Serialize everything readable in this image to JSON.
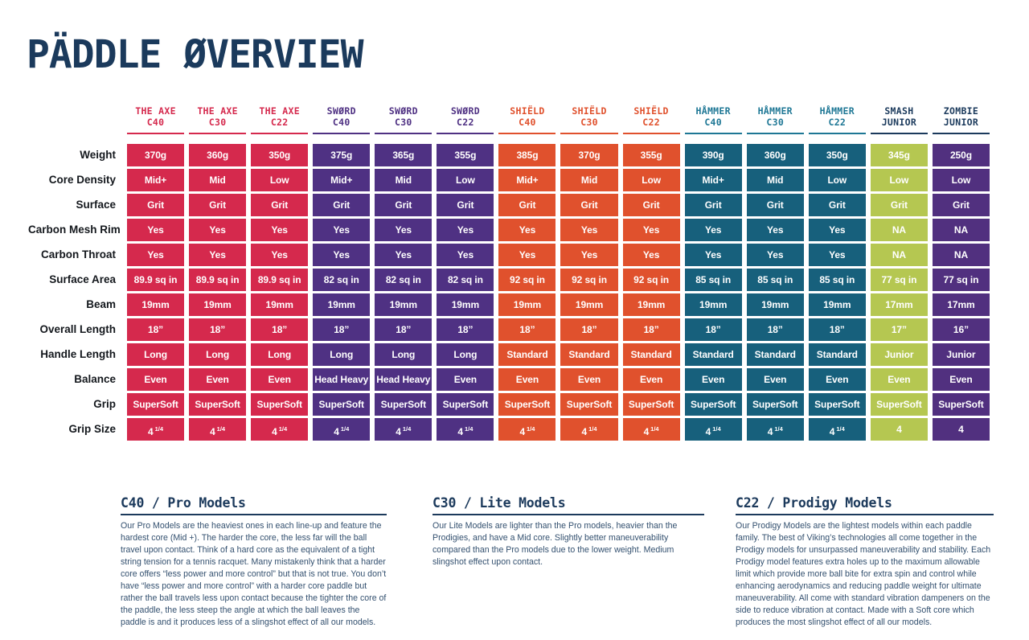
{
  "title": "PÄDDLE ØVERVIEW",
  "colors": {
    "navy": "#1B3A5C",
    "body_text": "#33506F",
    "row_label": "#14181D",
    "axe_red": "#D5294D",
    "sword_purple": "#4F3183",
    "shield_orange": "#E0512D",
    "hammer_teal": "#17607C",
    "hammer_teal_header": "#1E7795",
    "smash_lime": "#B5C751",
    "zombie_purple": "#51307F"
  },
  "families": {
    "axe": {
      "header": "#D5294D",
      "cell": "#D5294D"
    },
    "sword": {
      "header": "#4F3183",
      "cell": "#4F3183"
    },
    "shield": {
      "header": "#E0512D",
      "cell": "#E0512D"
    },
    "hammer": {
      "header": "#1E7795",
      "cell": "#17607C"
    },
    "smash": {
      "header": "#1B3A5C",
      "cell": "#B5C751"
    },
    "zombie": {
      "header": "#1B3A5C",
      "cell": "#51307F"
    }
  },
  "table": {
    "row_labels": [
      "Weight",
      "Core Density",
      "Surface",
      "Carbon Mesh Rim",
      "Carbon Throat",
      "Surface Area",
      "Beam",
      "Overall Length",
      "Handle Length",
      "Balance",
      "Grip",
      "Grip Size"
    ],
    "columns": [
      {
        "name": "THE AXE",
        "model": "C40",
        "family": "axe",
        "values": [
          "370g",
          "Mid+",
          "Grit",
          "Yes",
          "Yes",
          "89.9 sq in",
          "19mm",
          "18”",
          "Long",
          "Even",
          "SuperSoft",
          "4 1/4"
        ]
      },
      {
        "name": "THE AXE",
        "model": "C30",
        "family": "axe",
        "values": [
          "360g",
          "Mid",
          "Grit",
          "Yes",
          "Yes",
          "89.9 sq in",
          "19mm",
          "18”",
          "Long",
          "Even",
          "SuperSoft",
          "4 1/4"
        ]
      },
      {
        "name": "THE AXE",
        "model": "C22",
        "family": "axe",
        "values": [
          "350g",
          "Low",
          "Grit",
          "Yes",
          "Yes",
          "89.9 sq in",
          "19mm",
          "18”",
          "Long",
          "Even",
          "SuperSoft",
          "4 1/4"
        ]
      },
      {
        "name": "SWØRD",
        "model": "C40",
        "family": "sword",
        "values": [
          "375g",
          "Mid+",
          "Grit",
          "Yes",
          "Yes",
          "82 sq in",
          "19mm",
          "18”",
          "Long",
          "Head Heavy",
          "SuperSoft",
          "4 1/4"
        ]
      },
      {
        "name": "SWØRD",
        "model": "C30",
        "family": "sword",
        "values": [
          "365g",
          "Mid",
          "Grit",
          "Yes",
          "Yes",
          "82 sq in",
          "19mm",
          "18”",
          "Long",
          "Head Heavy",
          "SuperSoft",
          "4 1/4"
        ]
      },
      {
        "name": "SWØRD",
        "model": "C22",
        "family": "sword",
        "values": [
          "355g",
          "Low",
          "Grit",
          "Yes",
          "Yes",
          "82 sq in",
          "19mm",
          "18”",
          "Long",
          "Even",
          "SuperSoft",
          "4 1/4"
        ]
      },
      {
        "name": "SHIËLD",
        "model": "C40",
        "family": "shield",
        "values": [
          "385g",
          "Mid+",
          "Grit",
          "Yes",
          "Yes",
          "92 sq in",
          "19mm",
          "18”",
          "Standard",
          "Even",
          "SuperSoft",
          "4 1/4"
        ]
      },
      {
        "name": "SHIËLD",
        "model": "C30",
        "family": "shield",
        "values": [
          "370g",
          "Mid",
          "Grit",
          "Yes",
          "Yes",
          "92 sq in",
          "19mm",
          "18”",
          "Standard",
          "Even",
          "SuperSoft",
          "4 1/4"
        ]
      },
      {
        "name": "SHIËLD",
        "model": "C22",
        "family": "shield",
        "values": [
          "355g",
          "Low",
          "Grit",
          "Yes",
          "Yes",
          "92 sq in",
          "19mm",
          "18”",
          "Standard",
          "Even",
          "SuperSoft",
          "4 1/4"
        ]
      },
      {
        "name": "HÅMMER",
        "model": "C40",
        "family": "hammer",
        "values": [
          "390g",
          "Mid+",
          "Grit",
          "Yes",
          "Yes",
          "85 sq in",
          "19mm",
          "18”",
          "Standard",
          "Even",
          "SuperSoft",
          "4 1/4"
        ]
      },
      {
        "name": "HÅMMER",
        "model": "C30",
        "family": "hammer",
        "values": [
          "360g",
          "Mid",
          "Grit",
          "Yes",
          "Yes",
          "85 sq in",
          "19mm",
          "18”",
          "Standard",
          "Even",
          "SuperSoft",
          "4 1/4"
        ]
      },
      {
        "name": "HÅMMER",
        "model": "C22",
        "family": "hammer",
        "values": [
          "350g",
          "Low",
          "Grit",
          "Yes",
          "Yes",
          "85 sq in",
          "19mm",
          "18”",
          "Standard",
          "Even",
          "SuperSoft",
          "4 1/4"
        ]
      },
      {
        "name": "SMASH",
        "model": "JUNIOR",
        "family": "smash",
        "values": [
          "345g",
          "Low",
          "Grit",
          "NA",
          "NA",
          "77 sq in",
          "17mm",
          "17”",
          "Junior",
          "Even",
          "SuperSoft",
          "4"
        ]
      },
      {
        "name": "ZOMBIE",
        "model": "JUNIOR",
        "family": "zombie",
        "values": [
          "250g",
          "Low",
          "Grit",
          "NA",
          "NA",
          "77 sq in",
          "17mm",
          "16”",
          "Junior",
          "Even",
          "SuperSoft",
          "4"
        ]
      }
    ]
  },
  "notes": [
    {
      "heading": "C40 / Pro Models",
      "body": "Our Pro Models are the heaviest ones in each line-up and feature the hardest core (Mid +).  The harder the core, the less far will the ball travel upon contact.  Think of a hard core as the equivalent of a tight string tension for a tennis racquet.  Many mistakenly think that a harder core offers “less power and more control” but that is not true.  You don’t have “less power and more control” with a harder core paddle but rather the ball travels less upon contact because the tighter the core of the paddle, the less steep the angle at which the ball leaves the paddle is and it produces less of a slingshot effect of all our models."
    },
    {
      "heading": "C30 / Lite Models",
      "body": "Our Lite Models are lighter than the Pro models, heavier than the Prodigies, and have a Mid core. Slightly better maneuverability compared than the Pro models due to the lower weight. Medium slingshot effect upon contact."
    },
    {
      "heading": "C22 / Prodigy Models",
      "body": "Our Prodigy Models are the lightest models within each paddle family. The best of Viking’s technologies all come together in the Prodigy models for unsurpassed maneuverability and stability. Each Prodigy model features extra holes up to the maximum allowable limit which provide more ball bite for extra spin and control while enhancing aerodynamics and reducing paddle weight for ultimate maneuverability. All come with standard vibration dampeners on the side to reduce vibration at contact.  Made with a Soft core which produces the most slingshot effect of all our models."
    }
  ]
}
